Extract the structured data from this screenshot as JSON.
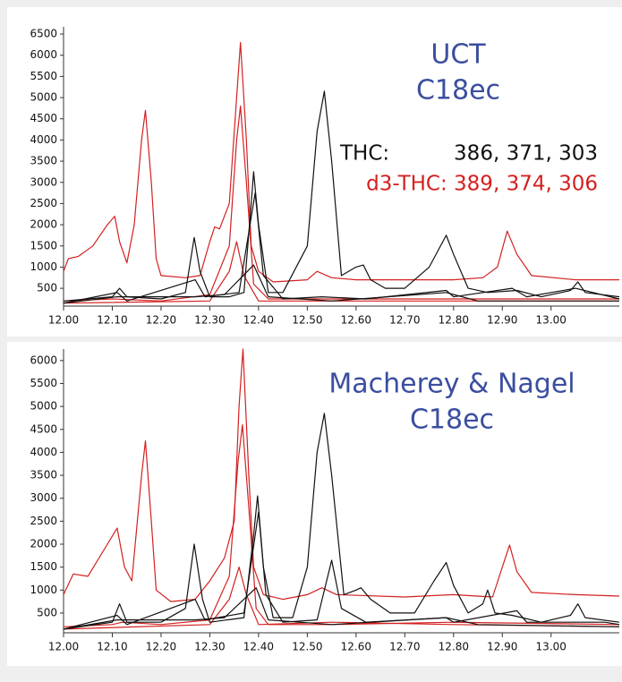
{
  "chart_data": [
    {
      "type": "line",
      "title_lines": [
        "UCT",
        "C18ec"
      ],
      "annotations": [
        "THC:",
        "386, 371, 303",
        "d3-THC: 389, 374, 306"
      ],
      "xlim": [
        12.0,
        13.14
      ],
      "ylim": [
        80,
        6670
      ],
      "xticks": [
        {
          "value": 12.0,
          "label": "12.00"
        },
        {
          "value": 12.1,
          "label": "12.10"
        },
        {
          "value": 12.2,
          "label": "12.20"
        },
        {
          "value": 12.3,
          "label": "12.30"
        },
        {
          "value": 12.4,
          "label": "12.40"
        },
        {
          "value": 12.5,
          "label": "12.50"
        },
        {
          "value": 12.6,
          "label": "12.60"
        },
        {
          "value": 12.7,
          "label": "12.70"
        },
        {
          "value": 12.8,
          "label": "12.80"
        },
        {
          "value": 12.9,
          "label": "12.90"
        },
        {
          "value": 13.0,
          "label": "13.00"
        }
      ],
      "yticks": [
        500,
        1000,
        1500,
        2000,
        2500,
        3000,
        3500,
        4000,
        4500,
        5000,
        5500,
        6000,
        6500
      ],
      "series": [
        {
          "color": "#d42020",
          "x": [
            12.0,
            12.01,
            12.03,
            12.06,
            12.09,
            12.105,
            12.115,
            12.13,
            12.145,
            12.16,
            12.168,
            12.18,
            12.19,
            12.2,
            12.25,
            12.28,
            12.3,
            12.31,
            12.32,
            12.34,
            12.355,
            12.363,
            12.375,
            12.385,
            12.4,
            12.43,
            12.5,
            12.52,
            12.55,
            12.6,
            12.7,
            12.8,
            12.86,
            12.89,
            12.91,
            12.93,
            12.96,
            13.05,
            13.14
          ],
          "values": [
            900,
            1200,
            1250,
            1500,
            2000,
            2200,
            1600,
            1100,
            2000,
            4000,
            4700,
            3000,
            1200,
            800,
            750,
            800,
            1600,
            1950,
            1900,
            2500,
            5000,
            6300,
            4000,
            1500,
            900,
            650,
            700,
            900,
            750,
            700,
            700,
            700,
            750,
            1000,
            1850,
            1300,
            800,
            700,
            700
          ]
        },
        {
          "color": "#d42020",
          "x": [
            12.0,
            12.1,
            12.2,
            12.3,
            12.34,
            12.355,
            12.363,
            12.375,
            12.39,
            12.42,
            12.5,
            12.8,
            13.14
          ],
          "values": [
            200,
            250,
            200,
            350,
            1500,
            4000,
            4800,
            3000,
            600,
            250,
            250,
            250,
            250
          ]
        },
        {
          "color": "#d42020",
          "x": [
            12.0,
            12.3,
            12.34,
            12.355,
            12.37,
            12.4,
            13.14
          ],
          "values": [
            150,
            200,
            900,
            1600,
            800,
            200,
            200
          ]
        },
        {
          "color": "#111111",
          "x": [
            12.0,
            12.1,
            12.115,
            12.13,
            12.2,
            12.25,
            12.268,
            12.28,
            12.3,
            12.34,
            12.37,
            12.385,
            12.39,
            12.4,
            12.42,
            12.45,
            12.5,
            12.52,
            12.535,
            12.55,
            12.57,
            12.6,
            12.615,
            12.63,
            12.66,
            12.7,
            12.75,
            12.785,
            12.8,
            12.83,
            12.87,
            12.93,
            12.98,
            13.04,
            13.055,
            13.07,
            13.14
          ],
          "values": [
            200,
            300,
            500,
            300,
            250,
            400,
            1700,
            900,
            300,
            300,
            400,
            2500,
            3250,
            2000,
            400,
            400,
            1500,
            4200,
            5150,
            3500,
            800,
            1000,
            1050,
            700,
            500,
            500,
            1000,
            1750,
            1300,
            500,
            400,
            450,
            300,
            450,
            650,
            400,
            300
          ]
        },
        {
          "color": "#111111",
          "x": [
            12.0,
            12.11,
            12.13,
            12.27,
            12.29,
            12.36,
            12.393,
            12.41,
            12.45,
            12.53,
            12.62,
            12.785,
            12.8,
            12.92,
            12.95,
            13.05,
            13.14
          ],
          "values": [
            150,
            400,
            200,
            700,
            300,
            400,
            2750,
            800,
            250,
            300,
            250,
            450,
            300,
            500,
            300,
            500,
            250
          ]
        },
        {
          "color": "#111111",
          "x": [
            12.0,
            12.11,
            12.27,
            12.33,
            12.39,
            12.42,
            12.55,
            12.785,
            12.85,
            13.14
          ],
          "values": [
            150,
            300,
            300,
            350,
            1050,
            300,
            200,
            400,
            200,
            200
          ]
        }
      ]
    },
    {
      "type": "line",
      "title_lines": [
        "Macherey & Nagel",
        "C18ec"
      ],
      "xlim": [
        12.0,
        13.14
      ],
      "ylim": [
        70,
        6250
      ],
      "xticks": [
        {
          "value": 12.0,
          "label": "12.00"
        },
        {
          "value": 12.1,
          "label": "12.10"
        },
        {
          "value": 12.2,
          "label": "12.20"
        },
        {
          "value": 12.3,
          "label": "12.30"
        },
        {
          "value": 12.4,
          "label": "12.40"
        },
        {
          "value": 12.5,
          "label": "12.50"
        },
        {
          "value": 12.6,
          "label": "12.60"
        },
        {
          "value": 12.7,
          "label": "12.70"
        },
        {
          "value": 12.8,
          "label": "12.80"
        },
        {
          "value": 12.9,
          "label": "12.90"
        },
        {
          "value": 13.0,
          "label": "13.00"
        }
      ],
      "yticks": [
        500,
        1000,
        1500,
        2000,
        2500,
        3000,
        3500,
        4000,
        4500,
        5000,
        5500,
        6000
      ],
      "series": [
        {
          "color": "#d42020",
          "x": [
            12.0,
            12.02,
            12.05,
            12.09,
            12.11,
            12.125,
            12.14,
            12.16,
            12.168,
            12.18,
            12.19,
            12.22,
            12.27,
            12.3,
            12.33,
            12.35,
            12.36,
            12.368,
            12.38,
            12.39,
            12.41,
            12.45,
            12.5,
            12.53,
            12.56,
            12.7,
            12.8,
            12.88,
            12.9,
            12.915,
            12.93,
            12.96,
            13.05,
            13.14
          ],
          "values": [
            900,
            1350,
            1300,
            2000,
            2350,
            1500,
            1200,
            3500,
            4250,
            2500,
            1000,
            750,
            800,
            1200,
            1700,
            2500,
            5000,
            6250,
            3500,
            1500,
            900,
            800,
            900,
            1050,
            900,
            850,
            900,
            850,
            1500,
            1980,
            1400,
            950,
            900,
            870
          ]
        },
        {
          "color": "#d42020",
          "x": [
            12.0,
            12.1,
            12.12,
            12.2,
            12.3,
            12.34,
            12.358,
            12.367,
            12.38,
            12.395,
            12.42,
            12.55,
            12.8,
            13.14
          ],
          "values": [
            200,
            250,
            300,
            250,
            350,
            1300,
            3800,
            4600,
            2800,
            600,
            250,
            250,
            300,
            250
          ]
        },
        {
          "color": "#d42020",
          "x": [
            12.0,
            12.3,
            12.34,
            12.36,
            12.375,
            12.4,
            12.55,
            12.8,
            13.14
          ],
          "values": [
            150,
            250,
            800,
            1500,
            900,
            250,
            300,
            250,
            200
          ]
        },
        {
          "color": "#111111",
          "x": [
            12.0,
            12.1,
            12.115,
            12.13,
            12.2,
            12.25,
            12.268,
            12.285,
            12.3,
            12.37,
            12.39,
            12.398,
            12.41,
            12.43,
            12.47,
            12.5,
            12.52,
            12.535,
            12.55,
            12.575,
            12.6,
            12.61,
            12.63,
            12.67,
            12.72,
            12.76,
            12.785,
            12.8,
            12.83,
            12.86,
            12.87,
            12.885,
            12.92,
            12.98,
            13.04,
            13.055,
            13.07,
            13.14
          ],
          "values": [
            150,
            300,
            700,
            300,
            300,
            600,
            2000,
            800,
            300,
            400,
            2200,
            3050,
            1500,
            400,
            400,
            1500,
            4000,
            4850,
            3500,
            900,
            1000,
            1050,
            800,
            500,
            500,
            1200,
            1600,
            1100,
            500,
            700,
            1000,
            500,
            450,
            300,
            450,
            700,
            400,
            300
          ]
        },
        {
          "color": "#111111",
          "x": [
            12.0,
            12.11,
            12.13,
            12.27,
            12.29,
            12.37,
            12.4,
            12.415,
            12.45,
            12.52,
            12.55,
            12.57,
            12.62,
            12.785,
            12.8,
            12.93,
            12.95,
            13.07,
            13.11,
            13.14
          ],
          "values": [
            150,
            450,
            250,
            800,
            350,
            500,
            2700,
            900,
            300,
            350,
            1650,
            600,
            300,
            400,
            300,
            550,
            300,
            300,
            300,
            250
          ]
        },
        {
          "color": "#111111",
          "x": [
            12.0,
            12.11,
            12.27,
            12.33,
            12.395,
            12.42,
            12.55,
            12.785,
            12.85,
            13.14
          ],
          "values": [
            150,
            350,
            350,
            400,
            1050,
            350,
            250,
            400,
            250,
            200
          ]
        }
      ]
    }
  ]
}
